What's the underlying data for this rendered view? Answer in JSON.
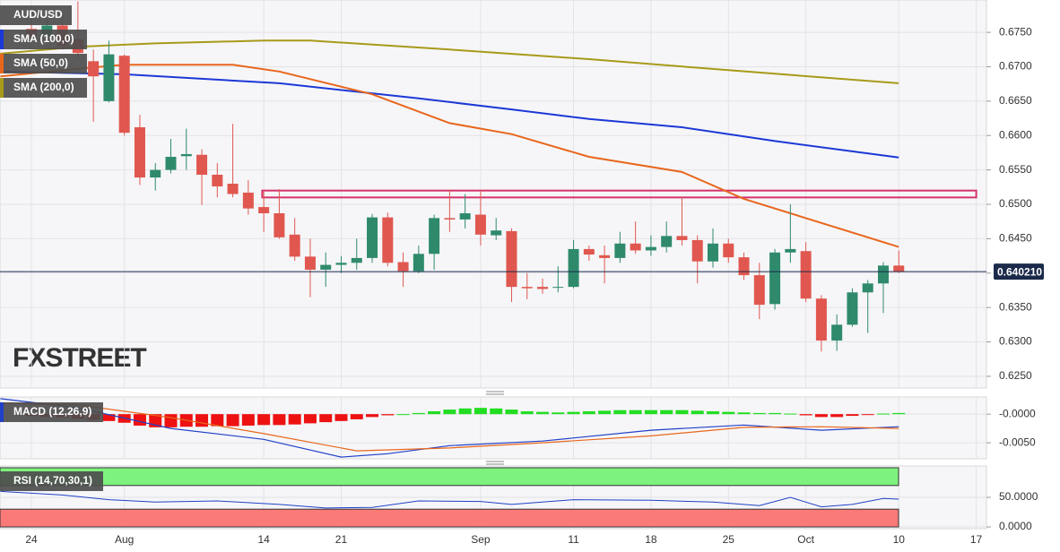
{
  "chart_data": [
    {
      "type": "candlestick",
      "title": "AUD/USD",
      "watermark": "FXSTREET",
      "x": [
        0,
        1,
        2,
        3,
        4,
        5,
        6,
        7,
        8,
        9,
        10,
        11,
        12,
        13,
        14,
        15,
        16,
        17,
        18,
        19,
        20,
        21,
        22,
        23,
        24,
        25,
        26,
        27,
        28,
        29,
        30,
        31,
        32,
        33,
        34,
        35,
        36,
        37,
        38,
        39,
        40,
        41,
        42,
        43,
        44,
        45,
        46,
        47,
        48,
        49,
        50,
        51,
        52,
        53,
        54,
        55,
        56
      ],
      "open": [
        0.6755,
        0.6745,
        0.676,
        0.674,
        0.6708,
        0.665,
        0.6716,
        0.6612,
        0.6539,
        0.655,
        0.657,
        0.6572,
        0.6543,
        0.653,
        0.6517,
        0.6496,
        0.6487,
        0.6456,
        0.6424,
        0.6405,
        0.6412,
        0.6415,
        0.6422,
        0.6481,
        0.6416,
        0.6403,
        0.6428,
        0.648,
        0.6478,
        0.6485,
        0.6455,
        0.6461,
        0.638,
        0.638,
        0.638,
        0.638,
        0.6435,
        0.6426,
        0.6422,
        0.6443,
        0.6433,
        0.6438,
        0.6454,
        0.6448,
        0.6417,
        0.6443,
        0.6423,
        0.6397,
        0.6355,
        0.643,
        0.6432,
        0.6363,
        0.6302,
        0.6325,
        0.6372,
        0.6385,
        0.6411
      ],
      "high": [
        0.6768,
        0.677,
        0.6775,
        0.6795,
        0.6725,
        0.6738,
        0.6718,
        0.663,
        0.656,
        0.6595,
        0.661,
        0.658,
        0.656,
        0.6617,
        0.6535,
        0.652,
        0.6522,
        0.648,
        0.645,
        0.643,
        0.6425,
        0.645,
        0.6486,
        0.6488,
        0.643,
        0.644,
        0.6485,
        0.652,
        0.6515,
        0.652,
        0.648,
        0.6465,
        0.64,
        0.6392,
        0.641,
        0.6448,
        0.644,
        0.644,
        0.646,
        0.6475,
        0.6455,
        0.6475,
        0.651,
        0.6455,
        0.6465,
        0.645,
        0.643,
        0.6415,
        0.6435,
        0.65,
        0.6445,
        0.6368,
        0.634,
        0.6378,
        0.639,
        0.6416,
        0.6433
      ],
      "low": [
        0.6735,
        0.6738,
        0.6725,
        0.6712,
        0.662,
        0.6648,
        0.66,
        0.6528,
        0.652,
        0.6545,
        0.655,
        0.6499,
        0.651,
        0.651,
        0.6485,
        0.646,
        0.645,
        0.6418,
        0.6365,
        0.638,
        0.64,
        0.6405,
        0.6415,
        0.641,
        0.638,
        0.64,
        0.6405,
        0.646,
        0.6465,
        0.644,
        0.6448,
        0.6358,
        0.6362,
        0.637,
        0.6372,
        0.6378,
        0.6418,
        0.6385,
        0.6415,
        0.6428,
        0.6425,
        0.643,
        0.644,
        0.6385,
        0.6408,
        0.6415,
        0.639,
        0.6333,
        0.6347,
        0.6415,
        0.6358,
        0.6286,
        0.6287,
        0.6322,
        0.6313,
        0.6342,
        0.64
      ],
      "close": [
        0.6745,
        0.676,
        0.673,
        0.672,
        0.6686,
        0.6718,
        0.6604,
        0.6539,
        0.655,
        0.6569,
        0.6573,
        0.6543,
        0.6526,
        0.6515,
        0.6494,
        0.6487,
        0.6452,
        0.6424,
        0.6405,
        0.6412,
        0.6415,
        0.6422,
        0.6481,
        0.6415,
        0.6403,
        0.6428,
        0.648,
        0.6478,
        0.6487,
        0.6456,
        0.6462,
        0.638,
        0.6378,
        0.6377,
        0.638,
        0.6435,
        0.6427,
        0.6422,
        0.6443,
        0.6433,
        0.6438,
        0.6454,
        0.6448,
        0.6417,
        0.6443,
        0.6423,
        0.6397,
        0.6354,
        0.643,
        0.6435,
        0.6363,
        0.6302,
        0.6325,
        0.6372,
        0.6385,
        0.6411,
        0.6402
      ],
      "up_color": "#2f8a6c",
      "down_color": "#e0574f",
      "series": [
        {
          "name": "SMA (100,0)",
          "color": "#1c38d6",
          "x": [
            -2,
            6,
            16,
            25,
            31,
            36,
            42,
            48,
            56
          ],
          "values": [
            0.6693,
            0.6689,
            0.6676,
            0.6654,
            0.6638,
            0.6624,
            0.6612,
            0.6592,
            0.6568
          ]
        },
        {
          "name": "SMA (50,0)",
          "color": "#e8661c",
          "x": [
            -2,
            3,
            6,
            13,
            16,
            22,
            27,
            31,
            36,
            42,
            46,
            50,
            56
          ],
          "values": [
            0.6686,
            0.6697,
            0.6703,
            0.6703,
            0.6693,
            0.666,
            0.6618,
            0.6602,
            0.6569,
            0.6547,
            0.6508,
            0.648,
            0.6438
          ]
        },
        {
          "name": "SMA (200,0)",
          "color": "#a89a1a",
          "x": [
            -2,
            3,
            8,
            15,
            18,
            27,
            36,
            45,
            56
          ],
          "values": [
            0.6719,
            0.6729,
            0.6734,
            0.6738,
            0.6738,
            0.6725,
            0.6711,
            0.6695,
            0.6676
          ]
        }
      ],
      "zone": {
        "x": [
          14.9,
          61
        ],
        "y": [
          0.651,
          0.652
        ],
        "color": "#d6336c"
      },
      "last_price": {
        "value": 0.64021,
        "label": "0.640210",
        "color": "#1b2a4a"
      },
      "xlim": [
        -2.03,
        61.66
      ],
      "xticks": [
        {
          "value": 0,
          "label": "24"
        },
        {
          "value": 6,
          "label": "Aug"
        },
        {
          "value": 15,
          "label": "14"
        },
        {
          "value": 20,
          "label": "21"
        },
        {
          "value": 29,
          "label": "Sep"
        },
        {
          "value": 35,
          "label": "11"
        },
        {
          "value": 40,
          "label": "18"
        },
        {
          "value": 45,
          "label": "25"
        },
        {
          "value": 50,
          "label": "Oct"
        },
        {
          "value": 56,
          "label": "10"
        },
        {
          "value": 61,
          "label": "17"
        }
      ],
      "ylim": [
        0.6233,
        0.6797
      ],
      "yticks": [
        {
          "value": 0.625,
          "label": "0.6250"
        },
        {
          "value": 0.63,
          "label": "0.6300"
        },
        {
          "value": 0.635,
          "label": "0.6350"
        },
        {
          "value": 0.64,
          "label": "0.6400"
        },
        {
          "value": 0.645,
          "label": "0.6450"
        },
        {
          "value": 0.65,
          "label": "0.6500"
        },
        {
          "value": 0.655,
          "label": "0.6550"
        },
        {
          "value": 0.66,
          "label": "0.6600"
        },
        {
          "value": 0.665,
          "label": "0.6650"
        },
        {
          "value": 0.67,
          "label": "0.6700"
        },
        {
          "value": 0.675,
          "label": "0.6750"
        }
      ],
      "grid": true
    },
    {
      "type": "macd",
      "title": "MACD (12,26,9)",
      "x": [
        0,
        1,
        2,
        3,
        4,
        5,
        6,
        7,
        8,
        9,
        10,
        11,
        12,
        13,
        14,
        15,
        16,
        17,
        18,
        19,
        20,
        21,
        22,
        23,
        24,
        25,
        26,
        27,
        28,
        29,
        30,
        31,
        32,
        33,
        34,
        35,
        36,
        37,
        38,
        39,
        40,
        41,
        42,
        43,
        44,
        45,
        46,
        47,
        48,
        49,
        50,
        51,
        52,
        53,
        54,
        55,
        56
      ],
      "values": [
        -0.0003,
        -0.0005,
        -0.0006,
        -0.0008,
        -0.001,
        -0.0012,
        -0.0015,
        -0.002,
        -0.0023,
        -0.0023,
        -0.0022,
        -0.0022,
        -0.0021,
        -0.0021,
        -0.002,
        -0.0019,
        -0.0019,
        -0.0018,
        -0.0016,
        -0.0014,
        -0.0012,
        -0.0009,
        -0.0005,
        -0.0002,
        0.0,
        0.0002,
        0.0005,
        0.0008,
        0.001,
        0.0011,
        0.001,
        0.0008,
        0.0005,
        0.0004,
        0.0003,
        0.0004,
        0.0005,
        0.0006,
        0.0007,
        0.0007,
        0.0007,
        0.0007,
        0.0007,
        0.0006,
        0.0005,
        0.0004,
        0.0003,
        0.0002,
        0.0002,
        0.0001,
        -0.0002,
        -0.0005,
        -0.0005,
        -0.0003,
        -0.0001,
        0.0001,
        0.0002
      ],
      "up_color": "#22dd22",
      "down_color": "#ee1111",
      "macd_line": {
        "color": "#2040c8",
        "x": [
          -2,
          3,
          9,
          15,
          20,
          23,
          27,
          33,
          40,
          46,
          51,
          56
        ],
        "values": [
          0.0027,
          0.0011,
          -0.0025,
          -0.0044,
          -0.0075,
          -0.0069,
          -0.0055,
          -0.0047,
          -0.0028,
          -0.0019,
          -0.0028,
          -0.0022
        ]
      },
      "signal_line": {
        "color": "#e8661c",
        "x": [
          -2,
          3,
          9,
          15,
          21,
          27,
          33,
          40,
          46,
          51,
          56
        ],
        "values": [
          0.0019,
          0.0016,
          -0.0006,
          -0.0034,
          -0.0064,
          -0.0059,
          -0.005,
          -0.0038,
          -0.0023,
          -0.0022,
          -0.0025
        ]
      },
      "ylim": [
        -0.0078,
        0.003
      ],
      "yticks": [
        {
          "value": 0,
          "label": "-0.0000"
        },
        {
          "value": -0.005,
          "label": "-0.0050"
        }
      ],
      "grid": true
    },
    {
      "type": "rsi",
      "title": "RSI (14,70,30,1)",
      "line": {
        "color": "#2040c8",
        "x": [
          -2,
          2,
          5,
          8,
          12,
          16,
          19,
          22,
          25,
          29,
          31,
          35,
          40,
          44,
          47,
          49,
          51,
          53,
          55,
          56
        ],
        "values": [
          60,
          54,
          46,
          42,
          44,
          38,
          32,
          33,
          44,
          43,
          38,
          46,
          45,
          42,
          36,
          50,
          34,
          38,
          48,
          47
        ]
      },
      "bands": [
        {
          "range": [
            70,
            100
          ],
          "color": "#7ef27e"
        },
        {
          "range": [
            0,
            30
          ],
          "color": "#fa7a78"
        }
      ],
      "ylim": [
        -3,
        103
      ],
      "yticks": [
        {
          "value": 50,
          "label": "50.0000"
        },
        {
          "value": 0,
          "label": "0.0000"
        }
      ],
      "grid": true
    }
  ]
}
